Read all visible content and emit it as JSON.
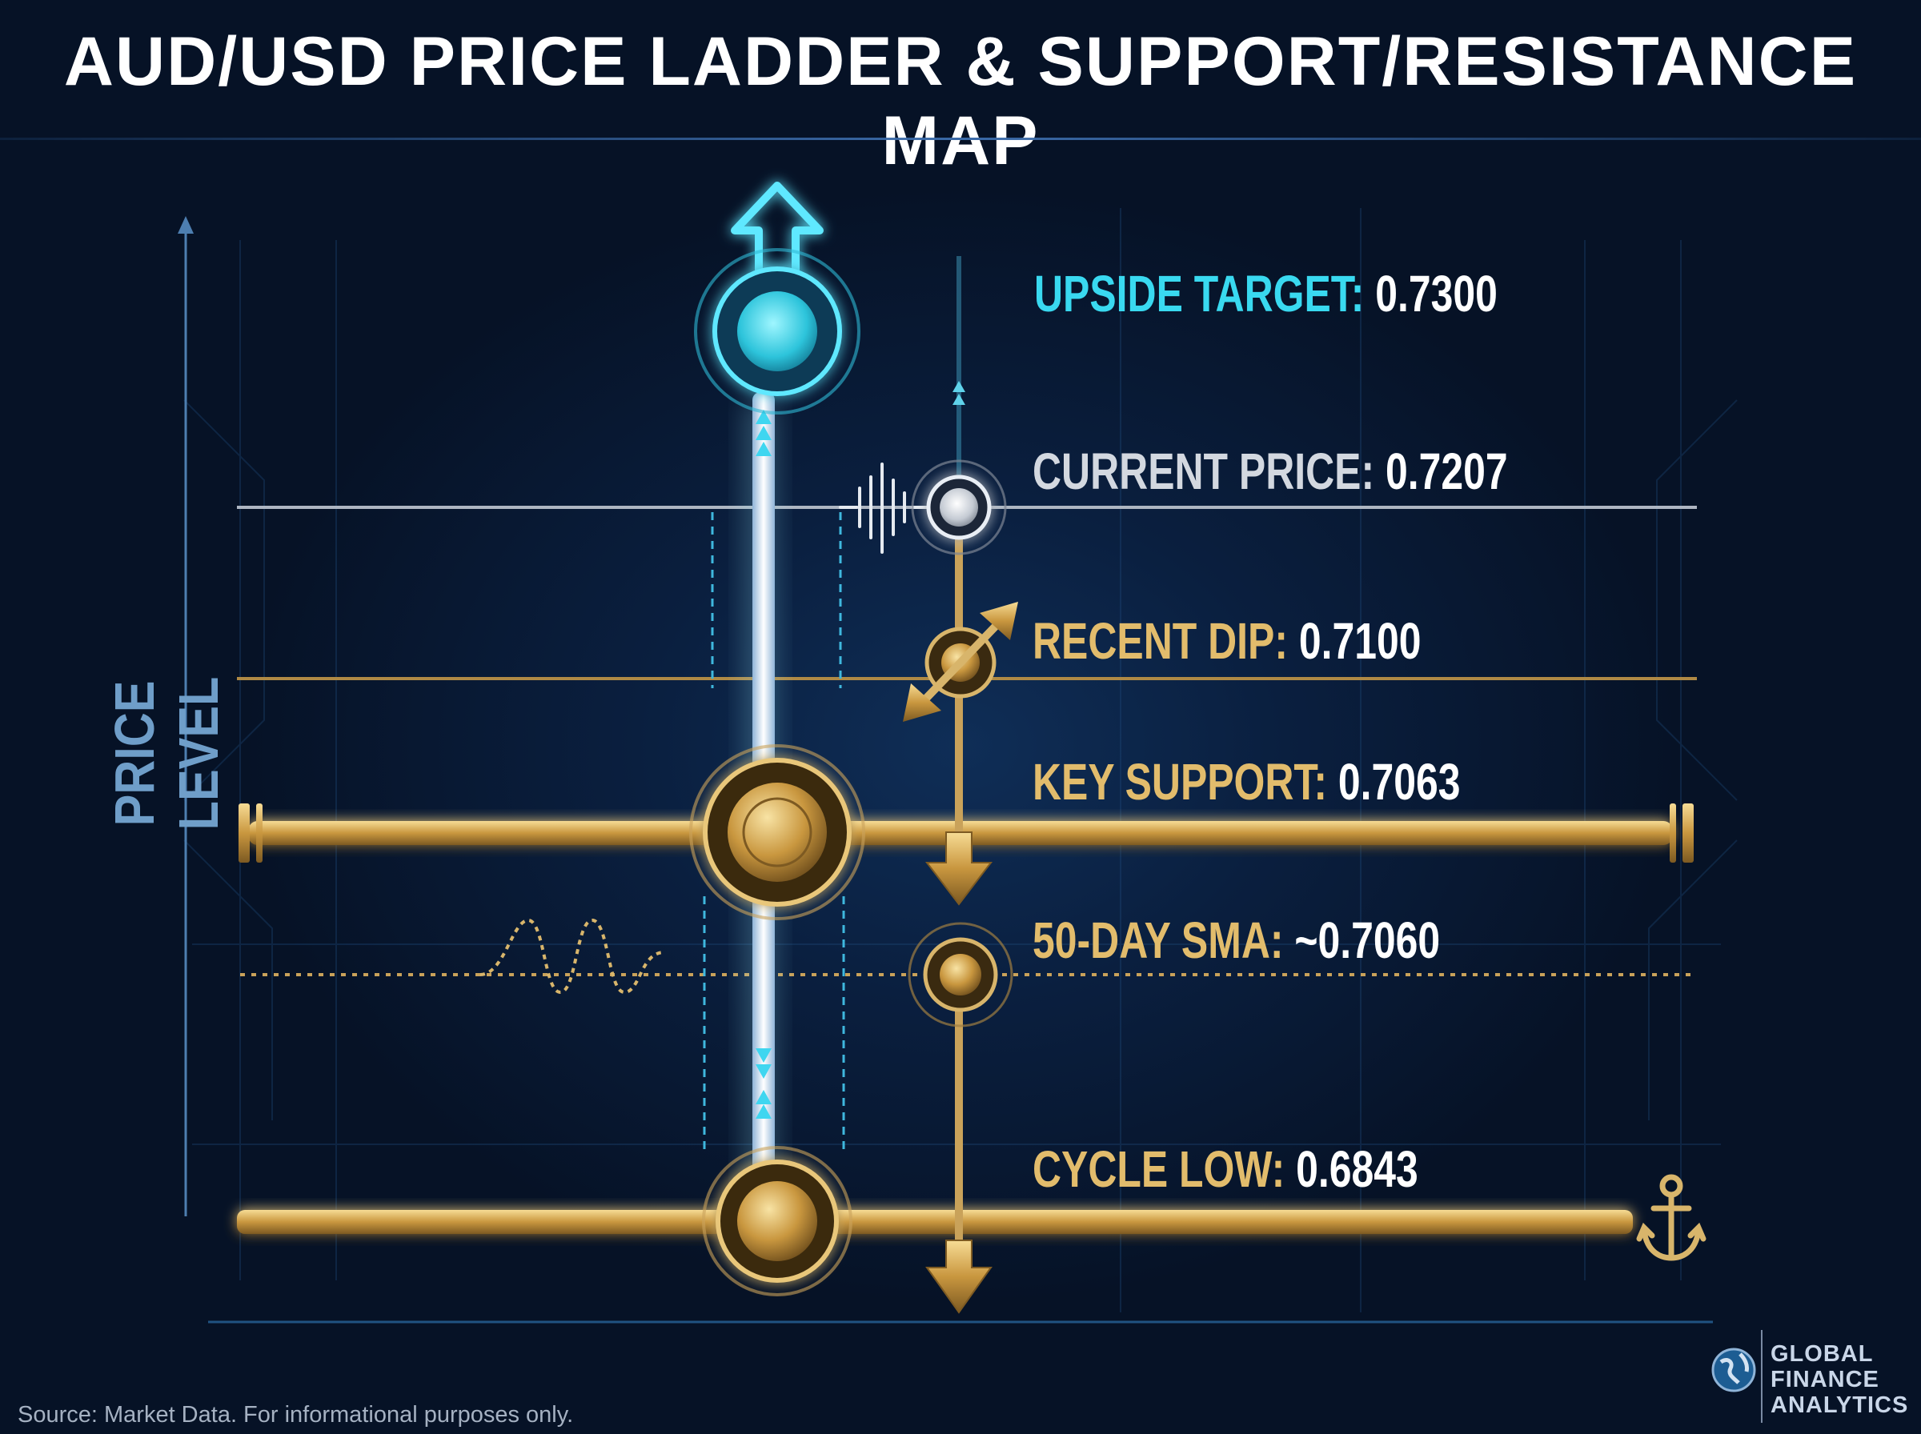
{
  "title": "AUD/USD PRICE LADDER & SUPPORT/RESISTANCE MAP",
  "axis": {
    "label": "PRICE LEVEL"
  },
  "levels": [
    {
      "label": "UPSIDE TARGET:",
      "value": "0.7300",
      "price": 0.73,
      "color": "#39d9f0"
    },
    {
      "label": "CURRENT PRICE:",
      "value": "0.7207",
      "price": 0.7207,
      "color": "#d3d8e0"
    },
    {
      "label": "RECENT DIP:",
      "value": "0.7100",
      "price": 0.71,
      "color": "#e2bc6c"
    },
    {
      "label": "KEY SUPPORT:",
      "value": "0.7063",
      "price": 0.7063,
      "color": "#e2bc6c"
    },
    {
      "label": "50-DAY SMA:",
      "value": "~0.7060",
      "price": 0.706,
      "color": "#e2bc6c"
    },
    {
      "label": "CYCLE LOW:",
      "value": "0.6843",
      "price": 0.6843,
      "color": "#e2bc6c"
    }
  ],
  "icons": [
    "up-arrow-icon",
    "down-arrow-icon",
    "diagonal-double-arrow-icon",
    "pulse-icon",
    "wave-icon",
    "anchor-icon",
    "globe-icon"
  ],
  "footer": {
    "source": "Source: Market Data. For informational purposes only."
  },
  "brand": {
    "line1": "GLOBAL",
    "line2": "FINANCE",
    "line3": "ANALYTICS"
  }
}
